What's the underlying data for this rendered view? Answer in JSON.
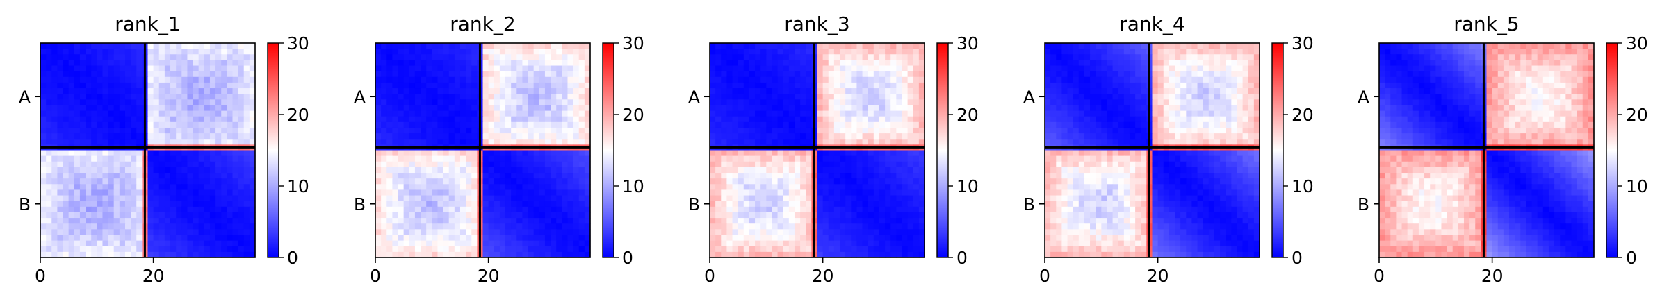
{
  "colorbar": {
    "ticks": [
      "0",
      "10",
      "20",
      "30"
    ],
    "cmap": [
      "#0000ff",
      "#ffffff",
      "#ff0000"
    ],
    "vmin": 0,
    "vmax": 30
  },
  "chart_data": [
    {
      "type": "heatmap",
      "title": "rank_1",
      "matrix_size": 38,
      "boundary": 19,
      "x_ticks": [
        "0",
        "20"
      ],
      "x_tick_values": [
        0,
        20
      ],
      "y_ticks": [
        "A",
        "B"
      ],
      "diag_values": [
        0,
        0
      ],
      "diag_far_values": [
        2,
        3
      ],
      "off_edge_value": 14,
      "off_center_value": 10,
      "edge_row_value": 22,
      "vmin": 0,
      "vmax": 30
    },
    {
      "type": "heatmap",
      "title": "rank_2",
      "matrix_size": 38,
      "boundary": 19,
      "x_ticks": [
        "0",
        "20"
      ],
      "x_tick_values": [
        0,
        20
      ],
      "y_ticks": [
        "A",
        "B"
      ],
      "diag_values": [
        0,
        0
      ],
      "diag_far_values": [
        2,
        4
      ],
      "off_edge_value": 17,
      "off_center_value": 11,
      "edge_row_value": 23,
      "vmin": 0,
      "vmax": 30
    },
    {
      "type": "heatmap",
      "title": "rank_3",
      "matrix_size": 38,
      "boundary": 19,
      "x_ticks": [
        "0",
        "20"
      ],
      "x_tick_values": [
        0,
        20
      ],
      "y_ticks": [
        "A",
        "B"
      ],
      "diag_values": [
        0,
        0
      ],
      "diag_far_values": [
        2,
        3
      ],
      "off_edge_value": 19,
      "off_center_value": 12,
      "edge_row_value": 23,
      "vmin": 0,
      "vmax": 30
    },
    {
      "type": "heatmap",
      "title": "rank_4",
      "matrix_size": 38,
      "boundary": 19,
      "x_ticks": [
        "0",
        "20"
      ],
      "x_tick_values": [
        0,
        20
      ],
      "y_ticks": [
        "A",
        "B"
      ],
      "diag_values": [
        0,
        0
      ],
      "diag_far_values": [
        5,
        6
      ],
      "off_edge_value": 19,
      "off_center_value": 12,
      "edge_row_value": 24,
      "vmin": 0,
      "vmax": 30
    },
    {
      "type": "heatmap",
      "title": "rank_5",
      "matrix_size": 38,
      "boundary": 19,
      "x_ticks": [
        "0",
        "20"
      ],
      "x_tick_values": [
        0,
        20
      ],
      "y_ticks": [
        "A",
        "B"
      ],
      "diag_values": [
        0,
        0
      ],
      "diag_far_values": [
        7,
        8
      ],
      "off_edge_value": 21,
      "off_center_value": 15,
      "edge_row_value": 25,
      "vmin": 0,
      "vmax": 30
    }
  ]
}
